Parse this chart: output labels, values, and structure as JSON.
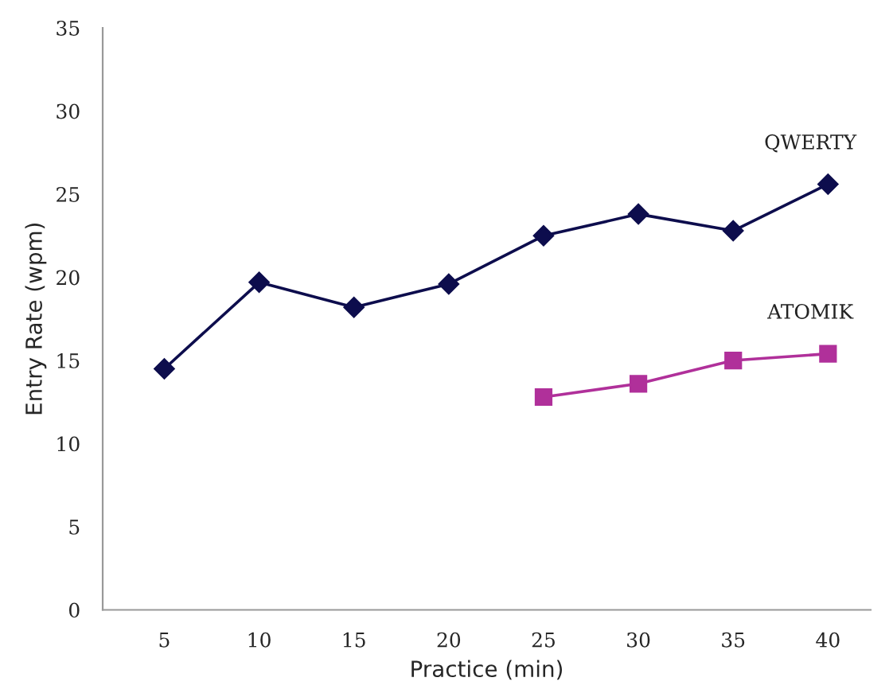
{
  "chart_data": {
    "type": "line",
    "xlabel": "Practice (min)",
    "ylabel": "Entry Rate (wpm)",
    "categories": [
      "5",
      "10",
      "15",
      "20",
      "25",
      "30",
      "35",
      "40"
    ],
    "series": [
      {
        "name": "QWERTY",
        "color": "#0d0d4d",
        "marker": "diamond",
        "values": [
          14.5,
          19.7,
          18.2,
          19.6,
          22.5,
          23.8,
          22.8,
          25.6
        ]
      },
      {
        "name": "ATOMIK",
        "color": "#b0309a",
        "marker": "square",
        "values": [
          null,
          null,
          null,
          null,
          12.8,
          13.6,
          15.0,
          15.4
        ]
      }
    ],
    "ylim": [
      0,
      35
    ],
    "yticks": [
      0,
      5,
      10,
      15,
      20,
      25,
      30,
      35
    ],
    "grid": false,
    "legend": false
  }
}
